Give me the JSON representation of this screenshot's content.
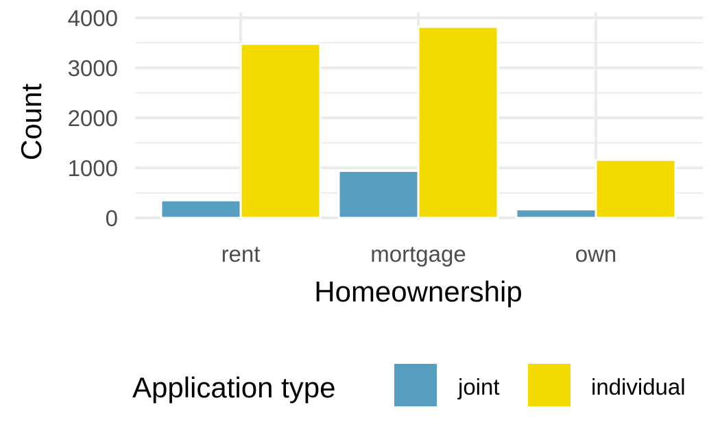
{
  "chart_data": {
    "type": "bar",
    "categories": [
      "rent",
      "mortgage",
      "own"
    ],
    "series": [
      {
        "name": "joint",
        "values": [
          350,
          940,
          170
        ],
        "color": "#569EC0"
      },
      {
        "name": "individual",
        "values": [
          3480,
          3820,
          1160
        ],
        "color": "#F3DB00"
      }
    ],
    "xlabel": "Homeownership",
    "ylabel": "Count",
    "ylim": [
      0,
      4000
    ],
    "yticks": [
      "0",
      "1000",
      "2000",
      "3000",
      "4000"
    ],
    "ytick_values": [
      0,
      1000,
      2000,
      3000,
      4000
    ],
    "grid": true,
    "legend": {
      "title": "Application type",
      "position": "bottom"
    }
  }
}
